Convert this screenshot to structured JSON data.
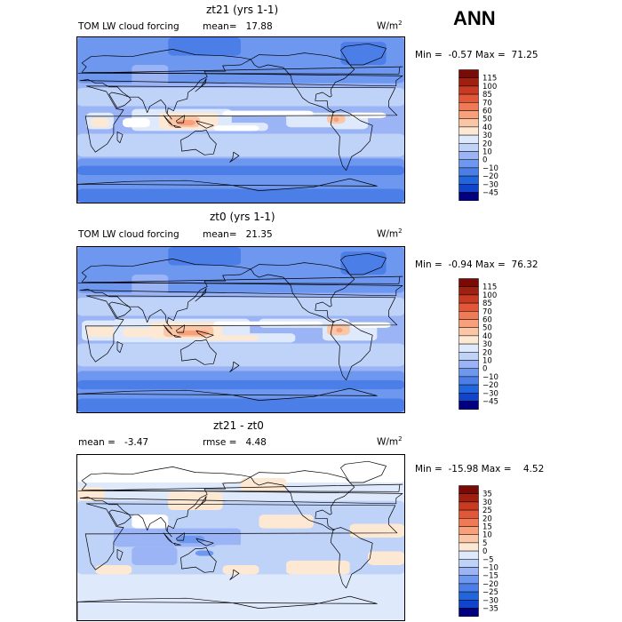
{
  "season": "ANN",
  "colors": {
    "abs_scale": [
      "#000080",
      "#0022aa",
      "#1144cc",
      "#2266dd",
      "#4c7ee8",
      "#6e98f0",
      "#9ab4f5",
      "#bfd2f8",
      "#dfe9fc",
      "#ffffff",
      "#fde8d4",
      "#fbc6a6",
      "#f7a07a",
      "#ef7a55",
      "#e2573a",
      "#c93a22",
      "#9f1f10",
      "#7a0a05"
    ],
    "diff_scale": [
      "#000080",
      "#0022aa",
      "#1144cc",
      "#2266dd",
      "#4c7ee8",
      "#6e98f0",
      "#9ab4f5",
      "#bfd2f8",
      "#dfe9fc",
      "#ffffff",
      "#fde8d4",
      "#fbc6a6",
      "#f7a07a",
      "#ef7a55",
      "#e2573a",
      "#c93a22",
      "#9f1f10",
      "#7a0a05"
    ]
  },
  "panels": [
    {
      "title": "zt21 (yrs 1-1)",
      "variable": "TOM LW cloud forcing",
      "mean_label": "mean=",
      "mean_value": "17.88",
      "units": "W/m",
      "units_exp": "2",
      "min_label": "Min =",
      "min_value": "-0.57",
      "max_label": "Max =",
      "max_value": "71.25",
      "levels": [
        "115",
        "100",
        "85",
        "70",
        "60",
        "50",
        "40",
        "30",
        "20",
        "10",
        "0",
        "−10",
        "−20",
        "−30",
        "−45"
      ]
    },
    {
      "title": "zt0 (yrs 1-1)",
      "variable": "TOM LW cloud forcing",
      "mean_label": "mean=",
      "mean_value": "21.35",
      "units": "W/m",
      "units_exp": "2",
      "min_label": "Min =",
      "min_value": "-0.94",
      "max_label": "Max =",
      "max_value": "76.32",
      "levels": [
        "115",
        "100",
        "85",
        "70",
        "60",
        "50",
        "40",
        "30",
        "20",
        "10",
        "0",
        "−10",
        "−20",
        "−30",
        "−45"
      ]
    },
    {
      "title": "zt21 - zt0",
      "mean_label": "mean =",
      "mean_value": "-3.47",
      "rmse_label": "rmse =",
      "rmse_value": "4.48",
      "units": "W/m",
      "units_exp": "2",
      "min_label": "Min =",
      "min_value": "-15.98",
      "max_label": "Max =",
      "max_value": "4.52",
      "levels": [
        "35",
        "30",
        "25",
        "20",
        "15",
        "10",
        "5",
        "0",
        "−5",
        "−10",
        "−15",
        "−20",
        "−25",
        "−30",
        "−35"
      ]
    }
  ]
}
